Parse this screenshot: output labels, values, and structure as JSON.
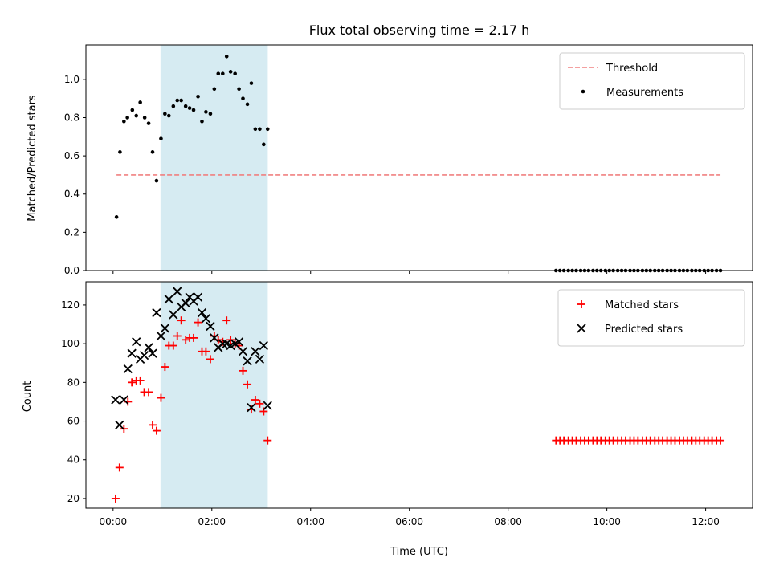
{
  "chart_data": [
    {
      "type": "scatter",
      "title": "Flux total observing time = 2.17 h",
      "xlabel": "",
      "ylabel": "Matched/Predicted stars",
      "xlim_hours": [
        -0.55,
        12.95
      ],
      "ylim": [
        0,
        1.18
      ],
      "yticks": [
        "0.0",
        "0.2",
        "0.4",
        "0.6",
        "0.8",
        "1.0"
      ],
      "x_tick_hours": [
        0,
        2,
        4,
        6,
        8,
        10,
        12
      ],
      "legend_position": "top-right",
      "highlight_span_hours": [
        0.97,
        3.12
      ],
      "threshold": {
        "name": "Threshold",
        "color": "#f08080",
        "style": "dashed",
        "x_start_hours": 0.07,
        "x_end_hours": 12.3,
        "value": 0.5
      },
      "series": [
        {
          "name": "Measurements",
          "marker": "dot",
          "color": "#000000",
          "x_hours": [
            0.07,
            0.14,
            0.22,
            0.29,
            0.39,
            0.47,
            0.55,
            0.64,
            0.72,
            0.8,
            0.88,
            0.97,
            1.05,
            1.13,
            1.22,
            1.3,
            1.38,
            1.47,
            1.55,
            1.63,
            1.72,
            1.8,
            1.88,
            1.97,
            2.05,
            2.13,
            2.22,
            2.3,
            2.38,
            2.47,
            2.55,
            2.63,
            2.72,
            2.8,
            2.88,
            2.97,
            3.05,
            3.13,
            8.97,
            9.05,
            9.13,
            9.22,
            9.3,
            9.38,
            9.47,
            9.55,
            9.63,
            9.72,
            9.8,
            9.88,
            9.97,
            10.05,
            10.13,
            10.22,
            10.3,
            10.38,
            10.47,
            10.55,
            10.63,
            10.72,
            10.8,
            10.88,
            10.97,
            11.05,
            11.13,
            11.22,
            11.3,
            11.38,
            11.47,
            11.55,
            11.63,
            11.72,
            11.8,
            11.88,
            11.97,
            12.05,
            12.13,
            12.22,
            12.3
          ],
          "y": [
            0.28,
            0.62,
            0.78,
            0.8,
            0.84,
            0.81,
            0.88,
            0.8,
            0.77,
            0.62,
            0.47,
            0.69,
            0.82,
            0.81,
            0.86,
            0.89,
            0.89,
            0.86,
            0.85,
            0.84,
            0.91,
            0.78,
            0.83,
            0.82,
            0.95,
            1.03,
            1.03,
            1.12,
            1.04,
            1.03,
            0.95,
            0.9,
            0.87,
            0.98,
            0.74,
            0.74,
            0.66,
            0.74,
            0,
            0,
            0,
            0,
            0,
            0,
            0,
            0,
            0,
            0,
            0,
            0,
            0,
            0,
            0,
            0,
            0,
            0,
            0,
            0,
            0,
            0,
            0,
            0,
            0,
            0,
            0,
            0,
            0,
            0,
            0,
            0,
            0,
            0,
            0,
            0,
            0,
            0,
            0,
            0,
            0
          ]
        }
      ]
    },
    {
      "type": "scatter",
      "title": "",
      "xlabel": "Time (UTC)",
      "ylabel": "Count",
      "xlim_hours": [
        -0.55,
        12.95
      ],
      "ylim": [
        15,
        132
      ],
      "yticks": [
        "20",
        "40",
        "60",
        "80",
        "100",
        "120"
      ],
      "x_tick_hours": [
        0,
        2,
        4,
        6,
        8,
        10,
        12
      ],
      "x_tick_labels": [
        "00:00",
        "02:00",
        "04:00",
        "06:00",
        "08:00",
        "10:00",
        "12:00"
      ],
      "legend_position": "top-right",
      "highlight_span_hours": [
        0.97,
        3.12
      ],
      "series": [
        {
          "name": "Matched stars",
          "marker": "plus",
          "color": "#ff0000",
          "x_hours": [
            0.05,
            0.13,
            0.22,
            0.3,
            0.38,
            0.47,
            0.55,
            0.63,
            0.72,
            0.8,
            0.88,
            0.97,
            1.05,
            1.13,
            1.22,
            1.3,
            1.38,
            1.47,
            1.55,
            1.63,
            1.72,
            1.8,
            1.88,
            1.97,
            2.05,
            2.13,
            2.22,
            2.3,
            2.38,
            2.47,
            2.55,
            2.63,
            2.72,
            2.8,
            2.88,
            2.97,
            3.05,
            3.13,
            8.97,
            9.05,
            9.13,
            9.22,
            9.3,
            9.38,
            9.47,
            9.55,
            9.63,
            9.72,
            9.8,
            9.88,
            9.97,
            10.05,
            10.13,
            10.22,
            10.3,
            10.38,
            10.47,
            10.55,
            10.63,
            10.72,
            10.8,
            10.88,
            10.97,
            11.05,
            11.13,
            11.22,
            11.3,
            11.38,
            11.47,
            11.55,
            11.63,
            11.72,
            11.8,
            11.88,
            11.97,
            12.05,
            12.13,
            12.22,
            12.3
          ],
          "y": [
            20,
            36,
            56,
            70,
            80,
            81,
            81,
            75,
            75,
            58,
            55,
            72,
            88,
            99,
            99,
            104,
            112,
            102,
            103,
            103,
            111,
            96,
            96,
            92,
            104,
            102,
            101,
            112,
            102,
            100,
            99,
            86,
            79,
            66,
            71,
            69,
            65,
            50,
            50,
            50,
            50,
            50,
            50,
            50,
            50,
            50,
            50,
            50,
            50,
            50,
            50,
            50,
            50,
            50,
            50,
            50,
            50,
            50,
            50,
            50,
            50,
            50,
            50,
            50,
            50,
            50,
            50,
            50,
            50,
            50,
            50,
            50,
            50,
            50,
            50,
            50,
            50,
            50,
            50
          ]
        },
        {
          "name": "Predicted stars",
          "marker": "x",
          "color": "#000000",
          "x_hours": [
            0.05,
            0.13,
            0.22,
            0.3,
            0.38,
            0.47,
            0.55,
            0.63,
            0.72,
            0.8,
            0.88,
            0.97,
            1.05,
            1.13,
            1.22,
            1.3,
            1.38,
            1.47,
            1.55,
            1.63,
            1.72,
            1.8,
            1.88,
            1.97,
            2.05,
            2.13,
            2.22,
            2.3,
            2.38,
            2.47,
            2.55,
            2.63,
            2.72,
            2.8,
            2.88,
            2.97,
            3.05,
            3.13
          ],
          "y": [
            71,
            58,
            71,
            87,
            95,
            101,
            92,
            94,
            98,
            95,
            116,
            104,
            108,
            123,
            115,
            127,
            119,
            121,
            124,
            122,
            124,
            116,
            113,
            109,
            103,
            98,
            100,
            100,
            99,
            100,
            101,
            96,
            91,
            67,
            96,
            92,
            99,
            68
          ]
        }
      ]
    }
  ]
}
